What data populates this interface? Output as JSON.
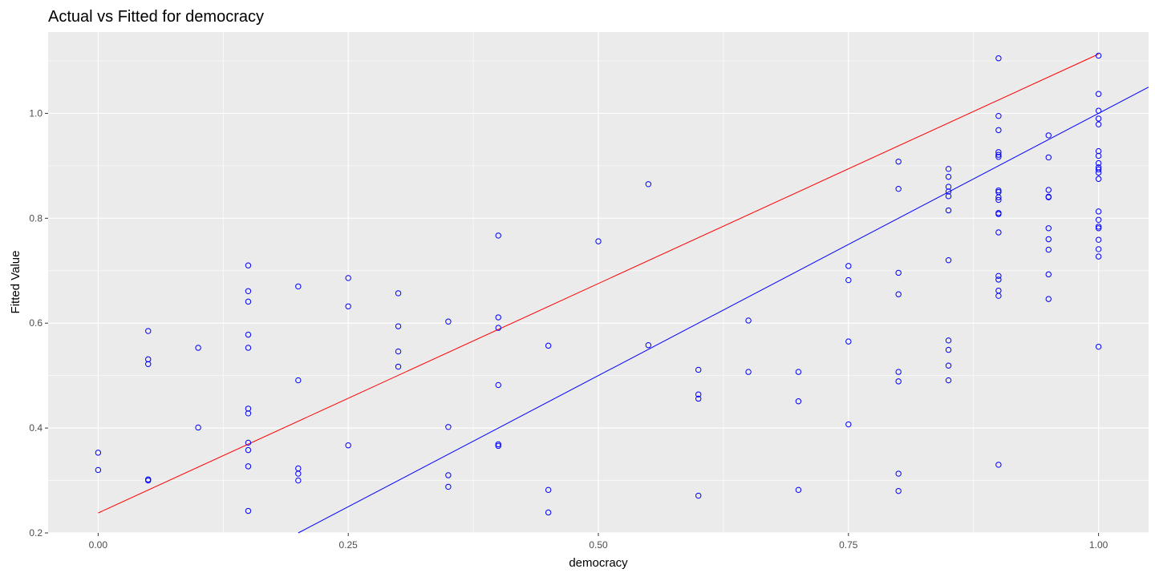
{
  "chart_data": {
    "type": "scatter",
    "title": "Actual vs Fitted for democracy",
    "xlabel": "democracy",
    "ylabel": "Fitted Value",
    "xlim": [
      -0.05,
      1.05
    ],
    "ylim": [
      0.2,
      1.155
    ],
    "x_ticks": [
      {
        "value": 0.0,
        "label": "0.00"
      },
      {
        "value": 0.25,
        "label": "0.25"
      },
      {
        "value": 0.5,
        "label": "0.50"
      },
      {
        "value": 0.75,
        "label": "0.75"
      },
      {
        "value": 1.0,
        "label": "1.00"
      }
    ],
    "y_ticks": [
      {
        "value": 0.2,
        "label": "0.2"
      },
      {
        "value": 0.4,
        "label": "0.4"
      },
      {
        "value": 0.6,
        "label": "0.6"
      },
      {
        "value": 0.8,
        "label": "0.8"
      },
      {
        "value": 1.0,
        "label": "1.0"
      }
    ],
    "grid": true,
    "colors": {
      "points": "#0000ff",
      "identity_line": "#0000ff",
      "fit_line": "#ff0000",
      "panel": "#ebebeb",
      "grid": "#ffffff"
    },
    "lines": [
      {
        "kind": "identity",
        "slope": 1.0,
        "intercept": 0.0
      },
      {
        "kind": "fit",
        "slope": 0.875,
        "intercept": 0.238
      }
    ],
    "points": [
      [
        0.0,
        0.353
      ],
      [
        0.0,
        0.32
      ],
      [
        0.05,
        0.585
      ],
      [
        0.05,
        0.531
      ],
      [
        0.05,
        0.522
      ],
      [
        0.05,
        0.302
      ],
      [
        0.05,
        0.3
      ],
      [
        0.1,
        0.553
      ],
      [
        0.1,
        0.401
      ],
      [
        0.15,
        0.71
      ],
      [
        0.15,
        0.661
      ],
      [
        0.15,
        0.641
      ],
      [
        0.15,
        0.578
      ],
      [
        0.15,
        0.553
      ],
      [
        0.15,
        0.437
      ],
      [
        0.15,
        0.428
      ],
      [
        0.15,
        0.372
      ],
      [
        0.15,
        0.358
      ],
      [
        0.15,
        0.327
      ],
      [
        0.15,
        0.242
      ],
      [
        0.2,
        0.67
      ],
      [
        0.2,
        0.491
      ],
      [
        0.2,
        0.323
      ],
      [
        0.2,
        0.313
      ],
      [
        0.2,
        0.3
      ],
      [
        0.25,
        0.686
      ],
      [
        0.25,
        0.632
      ],
      [
        0.25,
        0.367
      ],
      [
        0.3,
        0.657
      ],
      [
        0.3,
        0.594
      ],
      [
        0.3,
        0.546
      ],
      [
        0.3,
        0.517
      ],
      [
        0.35,
        0.603
      ],
      [
        0.35,
        0.402
      ],
      [
        0.35,
        0.31
      ],
      [
        0.35,
        0.288
      ],
      [
        0.4,
        0.767
      ],
      [
        0.4,
        0.611
      ],
      [
        0.4,
        0.591
      ],
      [
        0.4,
        0.482
      ],
      [
        0.4,
        0.369
      ],
      [
        0.4,
        0.366
      ],
      [
        0.45,
        0.557
      ],
      [
        0.45,
        0.282
      ],
      [
        0.45,
        0.239
      ],
      [
        0.5,
        0.756
      ],
      [
        0.55,
        0.865
      ],
      [
        0.55,
        0.558
      ],
      [
        0.6,
        0.511
      ],
      [
        0.6,
        0.464
      ],
      [
        0.6,
        0.456
      ],
      [
        0.6,
        0.271
      ],
      [
        0.65,
        0.605
      ],
      [
        0.65,
        0.507
      ],
      [
        0.7,
        0.507
      ],
      [
        0.7,
        0.451
      ],
      [
        0.7,
        0.282
      ],
      [
        0.75,
        0.709
      ],
      [
        0.75,
        0.682
      ],
      [
        0.75,
        0.565
      ],
      [
        0.75,
        0.407
      ],
      [
        0.8,
        0.908
      ],
      [
        0.8,
        0.856
      ],
      [
        0.8,
        0.696
      ],
      [
        0.8,
        0.655
      ],
      [
        0.8,
        0.507
      ],
      [
        0.8,
        0.489
      ],
      [
        0.8,
        0.313
      ],
      [
        0.8,
        0.28
      ],
      [
        0.85,
        0.894
      ],
      [
        0.85,
        0.879
      ],
      [
        0.85,
        0.86
      ],
      [
        0.85,
        0.851
      ],
      [
        0.85,
        0.842
      ],
      [
        0.85,
        0.815
      ],
      [
        0.85,
        0.72
      ],
      [
        0.85,
        0.567
      ],
      [
        0.85,
        0.549
      ],
      [
        0.85,
        0.519
      ],
      [
        0.85,
        0.491
      ],
      [
        0.9,
        1.105
      ],
      [
        0.9,
        0.995
      ],
      [
        0.9,
        0.968
      ],
      [
        0.9,
        0.926
      ],
      [
        0.9,
        0.921
      ],
      [
        0.9,
        0.917
      ],
      [
        0.9,
        0.853
      ],
      [
        0.9,
        0.85
      ],
      [
        0.9,
        0.84
      ],
      [
        0.9,
        0.835
      ],
      [
        0.9,
        0.81
      ],
      [
        0.9,
        0.808
      ],
      [
        0.9,
        0.773
      ],
      [
        0.9,
        0.69
      ],
      [
        0.9,
        0.683
      ],
      [
        0.9,
        0.662
      ],
      [
        0.9,
        0.652
      ],
      [
        0.9,
        0.33
      ],
      [
        0.95,
        0.958
      ],
      [
        0.95,
        0.916
      ],
      [
        0.95,
        0.854
      ],
      [
        0.95,
        0.841
      ],
      [
        0.95,
        0.84
      ],
      [
        0.95,
        0.781
      ],
      [
        0.95,
        0.76
      ],
      [
        0.95,
        0.74
      ],
      [
        0.95,
        0.693
      ],
      [
        0.95,
        0.646
      ],
      [
        1.0,
        1.11
      ],
      [
        1.0,
        1.037
      ],
      [
        1.0,
        1.005
      ],
      [
        1.0,
        0.99
      ],
      [
        1.0,
        0.979
      ],
      [
        1.0,
        0.928
      ],
      [
        1.0,
        0.919
      ],
      [
        1.0,
        0.905
      ],
      [
        1.0,
        0.897
      ],
      [
        1.0,
        0.893
      ],
      [
        1.0,
        0.887
      ],
      [
        1.0,
        0.875
      ],
      [
        1.0,
        0.813
      ],
      [
        1.0,
        0.797
      ],
      [
        1.0,
        0.784
      ],
      [
        1.0,
        0.781
      ],
      [
        1.0,
        0.759
      ],
      [
        1.0,
        0.741
      ],
      [
        1.0,
        0.727
      ],
      [
        1.0,
        0.555
      ]
    ]
  }
}
